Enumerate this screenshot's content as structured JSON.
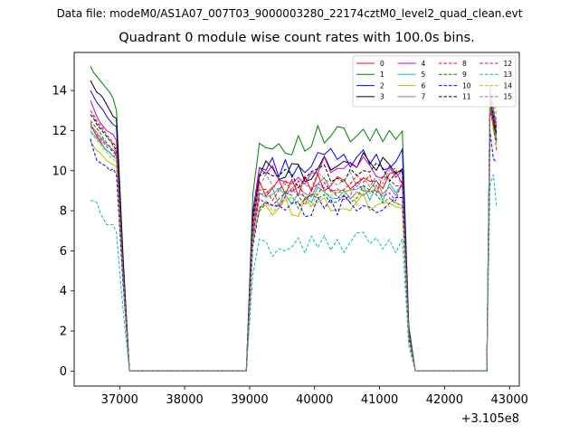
{
  "data_file_label": "Data file: modeM0/AS1A07_007T03_9000003280_22174cztM0_level2_quad_clean.evt",
  "chart_data": {
    "type": "line",
    "title": "Quadrant 0 module wise count rates with 100.0s bins.",
    "xlabel": "",
    "ylabel": "",
    "x_offset_label": "+3.105e8",
    "x_offset": 310500000,
    "xlim": [
      36300,
      43150
    ],
    "ylim": [
      -0.75,
      15.9
    ],
    "xticks": [
      37000,
      38000,
      39000,
      40000,
      41000,
      42000,
      43000
    ],
    "xtick_labels": [
      "37000",
      "38000",
      "39000",
      "40000",
      "41000",
      "42000",
      "43000"
    ],
    "yticks": [
      0,
      2,
      4,
      6,
      8,
      10,
      12,
      14
    ],
    "ytick_labels": [
      "0",
      "2",
      "4",
      "6",
      "8",
      "10",
      "12",
      "14"
    ],
    "grid": false,
    "legend_position": "top-right",
    "legend_columns": 4,
    "segments": [
      {
        "x_start": 36550,
        "x_end": 36950,
        "step": 50,
        "next": 37050
      },
      {
        "x_start": 39050,
        "x_end": 41350,
        "step": 100,
        "next": 41450
      },
      {
        "x_start": 42700,
        "x_end": 42800,
        "step": 50,
        "next": null
      }
    ],
    "zero_runs": [
      [
        37150,
        38950
      ],
      [
        41550,
        42650
      ]
    ],
    "series": [
      {
        "name": "0",
        "color": "#ff0000",
        "dash": "solid",
        "base": 9.2,
        "seg1": [
          12.4,
          12.0,
          11.7,
          11.5,
          11.2,
          11.0,
          10.9,
          10.7,
          10.8
        ],
        "seg3": [
          13.2,
          12.2,
          11.6
        ]
      },
      {
        "name": "1",
        "color": "#008000",
        "dash": "solid",
        "base": 11.3,
        "seg1": [
          15.2,
          14.9,
          14.7,
          14.5,
          14.3,
          14.1,
          13.9,
          13.6,
          13.0
        ],
        "seg3": [
          14.2,
          13.0,
          12.2
        ]
      },
      {
        "name": "2",
        "color": "#0000ff",
        "dash": "solid",
        "base": 10.2,
        "seg1": [
          14.0,
          13.7,
          13.4,
          13.2,
          13.0,
          12.7,
          12.5,
          12.3,
          12.2
        ],
        "seg3": [
          13.8,
          12.4,
          11.5
        ]
      },
      {
        "name": "3",
        "color": "#000000",
        "dash": "solid",
        "base": 10.0,
        "seg1": [
          14.5,
          14.2,
          13.9,
          13.8,
          13.6,
          13.3,
          13.0,
          12.7,
          12.6
        ],
        "seg3": [
          13.6,
          12.5,
          11.4
        ]
      },
      {
        "name": "4",
        "color": "#cc00cc",
        "dash": "solid",
        "base": 9.8,
        "seg1": [
          13.5,
          13.1,
          12.7,
          12.4,
          12.2,
          12.0,
          11.9,
          11.8,
          11.5
        ],
        "seg3": [
          14.0,
          13.0,
          12.1
        ]
      },
      {
        "name": "5",
        "color": "#00bfbf",
        "dash": "solid",
        "base": 8.6,
        "seg1": [
          12.0,
          11.8,
          11.6,
          11.4,
          11.2,
          11.0,
          10.9,
          10.7,
          10.6
        ],
        "seg3": [
          13.5,
          12.2,
          11.6
        ]
      },
      {
        "name": "6",
        "color": "#bfbf00",
        "dash": "solid",
        "base": 8.2,
        "seg1": [
          11.5,
          11.2,
          11.0,
          10.9,
          10.7,
          10.5,
          10.4,
          10.3,
          10.2
        ],
        "seg3": [
          13.3,
          12.0,
          11.4
        ]
      },
      {
        "name": "7",
        "color": "#808080",
        "dash": "solid",
        "base": 8.8,
        "seg1": [
          12.3,
          12.1,
          11.9,
          11.7,
          11.5,
          11.3,
          11.2,
          11.0,
          10.9
        ],
        "seg3": [
          13.7,
          12.8,
          11.9
        ]
      },
      {
        "name": "8",
        "color": "#ff0000",
        "dash": "dashed",
        "base": 9.0,
        "seg1": [
          13.0,
          12.7,
          12.4,
          12.2,
          12.0,
          11.8,
          11.6,
          11.4,
          11.2
        ],
        "seg3": [
          13.0,
          12.3,
          11.0
        ]
      },
      {
        "name": "9",
        "color": "#008000",
        "dash": "dashed",
        "base": 8.5,
        "seg1": [
          12.5,
          12.3,
          12.1,
          11.9,
          11.6,
          11.4,
          11.2,
          11.0,
          10.8
        ],
        "seg3": [
          13.4,
          12.6,
          11.7
        ]
      },
      {
        "name": "10",
        "color": "#0000ff",
        "dash": "dashed",
        "base": 8.0,
        "seg1": [
          11.6,
          11.0,
          10.5,
          10.4,
          10.3,
          10.2,
          10.0,
          10.1,
          9.8
        ],
        "seg3": [
          12.0,
          10.6,
          10.4
        ]
      },
      {
        "name": "11",
        "color": "#000000",
        "dash": "dashed",
        "base": 9.6,
        "seg1": [
          12.8,
          12.6,
          12.3,
          12.1,
          11.9,
          11.7,
          11.5,
          11.3,
          11.0
        ],
        "seg3": [
          13.5,
          12.7,
          11.8
        ]
      },
      {
        "name": "12",
        "color": "#cc00cc",
        "dash": "dashed",
        "base": 8.7,
        "seg1": [
          12.2,
          12.0,
          11.8,
          11.6,
          11.4,
          11.2,
          11.1,
          10.9,
          10.8
        ],
        "seg3": [
          13.1,
          12.4,
          12.6
        ]
      },
      {
        "name": "13",
        "color": "#00bfbf",
        "dash": "dashed",
        "base": 6.2,
        "seg1": [
          8.5,
          8.5,
          8.4,
          7.9,
          7.6,
          7.3,
          7.3,
          7.3,
          6.9
        ],
        "seg3": [
          9.3,
          9.8,
          8.2
        ]
      },
      {
        "name": "14",
        "color": "#bfbf00",
        "dash": "dashed",
        "base": 8.3,
        "seg1": [
          11.9,
          11.7,
          11.5,
          11.3,
          11.1,
          10.9,
          10.7,
          10.6,
          10.4
        ],
        "seg3": [
          14.1,
          14.0,
          12.8
        ]
      },
      {
        "name": "15",
        "color": "#808080",
        "dash": "dashed",
        "base": 9.3,
        "seg1": [
          13.0,
          12.8,
          12.5,
          12.3,
          12.1,
          11.8,
          11.5,
          11.2,
          10.9
        ],
        "seg3": [
          13.9,
          13.3,
          12.4
        ]
      }
    ]
  }
}
